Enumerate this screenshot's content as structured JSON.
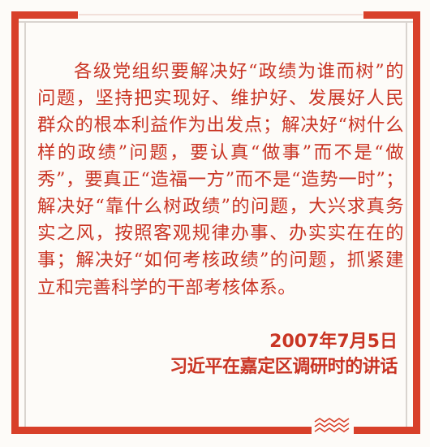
{
  "quote": {
    "text": "各级党组织要解决好“政绩为谁而树”的问题，坚持把实现好、维护好、发展好人民群众的根本利益作为出发点；解决好“树什么样的政绩”问题，要认真“做事”而不是“做秀”，要真正“造福一方”而不是“造势一时”；解决好“靠什么树政绩”的问题，大兴求真务实之风，按照客观规律办事、办实实在在的事；解决好“如何考核政绩”的问题，抓紧建立和完善科学的干部考核体系。"
  },
  "attribution": {
    "date": "2007年7月5日",
    "source": "习近平在嘉定区调研时的讲话"
  },
  "colors": {
    "accent": "#d8402a",
    "text": "#c93524",
    "background": "#fdfbf8"
  }
}
